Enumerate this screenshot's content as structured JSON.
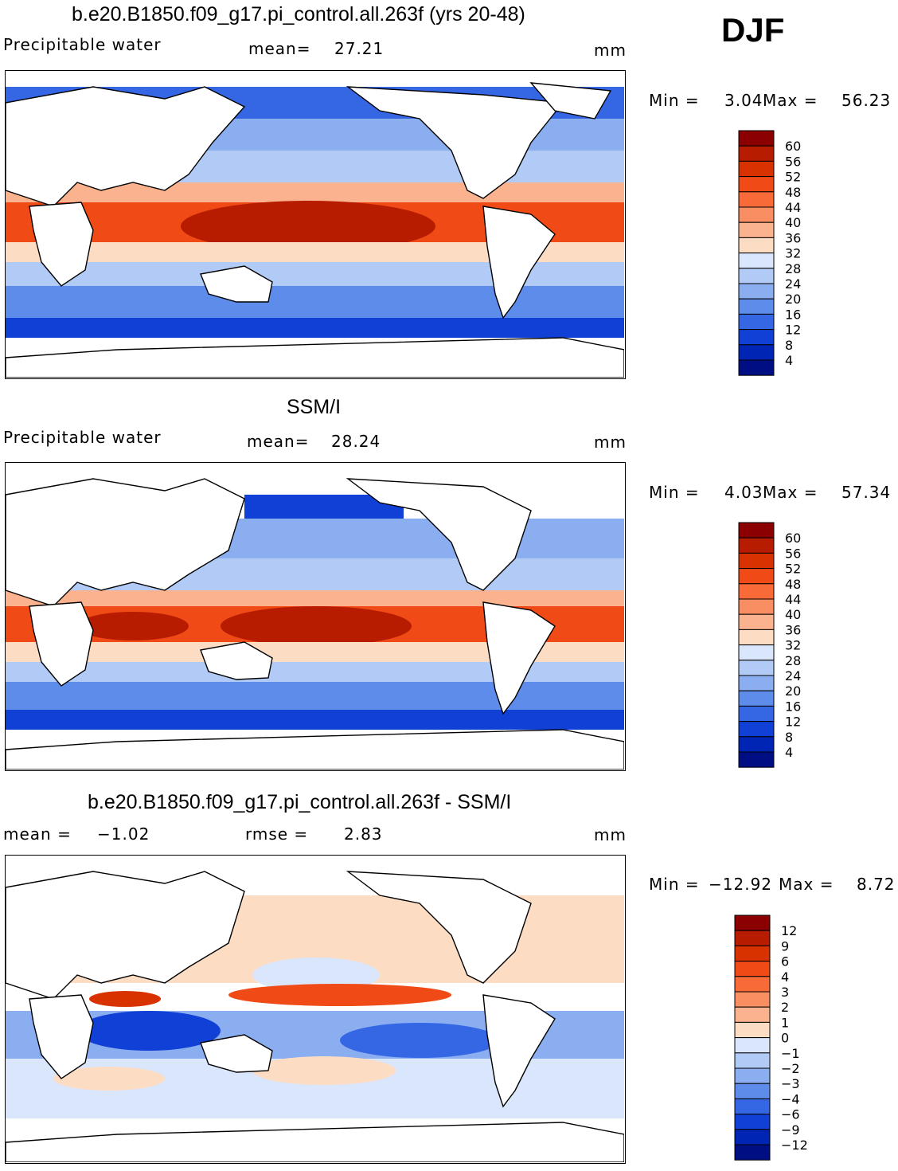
{
  "season": "DJF",
  "units": "mm",
  "panels": [
    {
      "id": "model",
      "title": "b.e20.B1850.f09_g17.pi_control.all.263f (yrs 20-48)",
      "left_label": "Precipitable water",
      "stat1": "mean=",
      "stat1_value": "27.21",
      "stat2": "",
      "stat2_value": "",
      "min_label": "Min =",
      "min_value": "3.04",
      "max_label": "Max =",
      "max_value": "56.23",
      "levels": [
        "60",
        "56",
        "52",
        "48",
        "44",
        "40",
        "36",
        "32",
        "28",
        "24",
        "20",
        "16",
        "12",
        "8",
        "4"
      ],
      "colors": [
        "#8b0000",
        "#b81c00",
        "#d83200",
        "#f04a16",
        "#f86a38",
        "#f98e62",
        "#fbb38f",
        "#fddcc4",
        "#d9e6fb",
        "#b2cbf6",
        "#8aaef0",
        "#5e8ceb",
        "#3566e4",
        "#1140d6",
        "#0025b4",
        "#000e84"
      ]
    },
    {
      "id": "obs",
      "title": "SSM/I",
      "left_label": "Precipitable water",
      "stat1": "mean=",
      "stat1_value": "28.24",
      "stat2": "",
      "stat2_value": "",
      "min_label": "Min =",
      "min_value": "4.03",
      "max_label": "Max =",
      "max_value": "57.34",
      "levels": [
        "60",
        "56",
        "52",
        "48",
        "44",
        "40",
        "36",
        "32",
        "28",
        "24",
        "20",
        "16",
        "12",
        "8",
        "4"
      ],
      "colors": [
        "#8b0000",
        "#b81c00",
        "#d83200",
        "#f04a16",
        "#f86a38",
        "#f98e62",
        "#fbb38f",
        "#fddcc4",
        "#d9e6fb",
        "#b2cbf6",
        "#8aaef0",
        "#5e8ceb",
        "#3566e4",
        "#1140d6",
        "#0025b4",
        "#000e84"
      ]
    },
    {
      "id": "diff",
      "title": "b.e20.B1850.f09_g17.pi_control.all.263f - SSM/I",
      "left_label": "mean =",
      "stat1": "",
      "stat1_value": "−1.02",
      "stat2": "rmse =",
      "stat2_value": "2.83",
      "min_label": "Min =",
      "min_value": "−12.92",
      "max_label": "Max =",
      "max_value": "8.72",
      "levels": [
        "12",
        "9",
        "6",
        "4",
        "3",
        "2",
        "1",
        "0",
        "−1",
        "−2",
        "−3",
        "−4",
        "−6",
        "−9",
        "−12"
      ],
      "colors": [
        "#8b0000",
        "#b81c00",
        "#d83200",
        "#f04a16",
        "#f86a38",
        "#f98e62",
        "#fbb38f",
        "#fddcc4",
        "#d9e6fb",
        "#b2cbf6",
        "#8aaef0",
        "#5e8ceb",
        "#3566e4",
        "#1140d6",
        "#0025b4",
        "#000e84"
      ]
    }
  ]
}
